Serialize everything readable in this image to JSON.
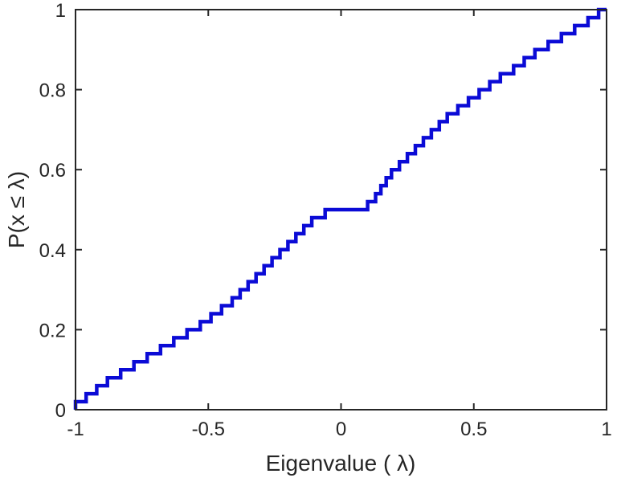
{
  "figure": {
    "background": "#ffffff"
  },
  "chart_data": {
    "type": "line",
    "style": "stairs-empirical-cdf",
    "title": "",
    "xlabel": "Eigenvalue (  λ)",
    "ylabel": "P(x ≤ λ)",
    "xlim": [
      -1,
      1
    ],
    "ylim": [
      0,
      1
    ],
    "xticks": [
      -1,
      -0.5,
      0,
      0.5,
      1
    ],
    "xtick_labels": [
      "-1",
      "-0.5",
      "0",
      "0.5",
      "1"
    ],
    "yticks": [
      0,
      0.2,
      0.4,
      0.6,
      0.8,
      1
    ],
    "ytick_labels": [
      "0",
      "0.2",
      "0.4",
      "0.6",
      "0.8",
      "1"
    ],
    "grid": false,
    "box": true,
    "legend": null,
    "line_color": "#0b0bd6",
    "line_width": 4.5,
    "axis_color": "#262626",
    "tick_length": 8,
    "points": [
      [
        -1.0,
        0.02
      ],
      [
        -0.96,
        0.04
      ],
      [
        -0.92,
        0.06
      ],
      [
        -0.88,
        0.08
      ],
      [
        -0.83,
        0.1
      ],
      [
        -0.78,
        0.12
      ],
      [
        -0.73,
        0.14
      ],
      [
        -0.68,
        0.16
      ],
      [
        -0.63,
        0.18
      ],
      [
        -0.58,
        0.2
      ],
      [
        -0.53,
        0.22
      ],
      [
        -0.49,
        0.24
      ],
      [
        -0.45,
        0.26
      ],
      [
        -0.41,
        0.28
      ],
      [
        -0.38,
        0.3
      ],
      [
        -0.35,
        0.32
      ],
      [
        -0.32,
        0.34
      ],
      [
        -0.29,
        0.36
      ],
      [
        -0.26,
        0.38
      ],
      [
        -0.23,
        0.4
      ],
      [
        -0.2,
        0.42
      ],
      [
        -0.17,
        0.44
      ],
      [
        -0.14,
        0.46
      ],
      [
        -0.11,
        0.48
      ],
      [
        -0.06,
        0.5
      ],
      [
        0.1,
        0.52
      ],
      [
        0.13,
        0.54
      ],
      [
        0.15,
        0.56
      ],
      [
        0.17,
        0.58
      ],
      [
        0.19,
        0.6
      ],
      [
        0.22,
        0.62
      ],
      [
        0.25,
        0.64
      ],
      [
        0.28,
        0.66
      ],
      [
        0.31,
        0.68
      ],
      [
        0.34,
        0.7
      ],
      [
        0.37,
        0.72
      ],
      [
        0.4,
        0.74
      ],
      [
        0.44,
        0.76
      ],
      [
        0.48,
        0.78
      ],
      [
        0.52,
        0.8
      ],
      [
        0.56,
        0.82
      ],
      [
        0.6,
        0.84
      ],
      [
        0.65,
        0.86
      ],
      [
        0.69,
        0.88
      ],
      [
        0.73,
        0.9
      ],
      [
        0.78,
        0.92
      ],
      [
        0.83,
        0.94
      ],
      [
        0.88,
        0.96
      ],
      [
        0.93,
        0.98
      ],
      [
        0.97,
        1.0
      ]
    ]
  }
}
